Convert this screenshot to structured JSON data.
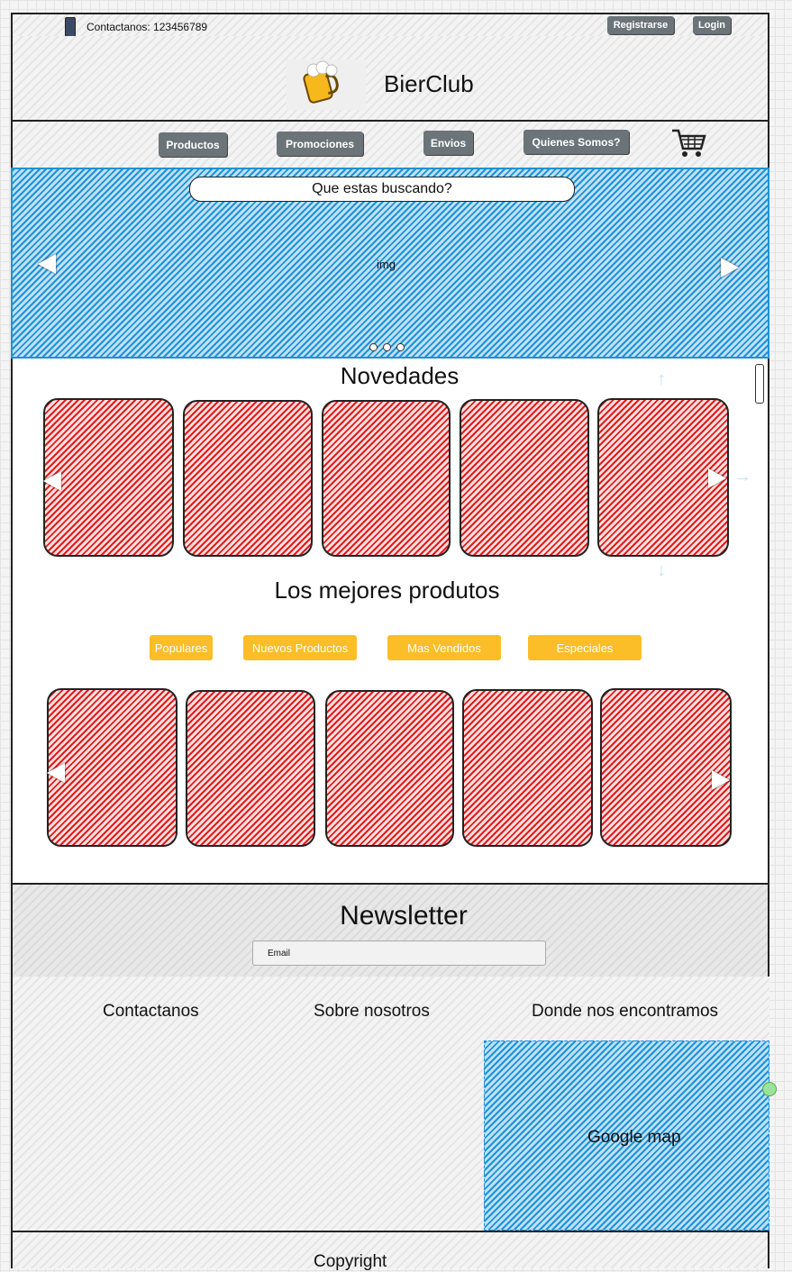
{
  "topbar": {
    "contact_text": "Contactanos: 123456789",
    "register_label": "Registrarse",
    "login_label": "Login"
  },
  "brand": {
    "name": "BierClub"
  },
  "nav": {
    "items": [
      "Productos",
      "Promociones",
      "Envios",
      "Quienes Somos?"
    ]
  },
  "hero": {
    "search_placeholder": "Que estas buscando?",
    "image_label": "img",
    "dots": 3
  },
  "novedades": {
    "title": "Novedades"
  },
  "best": {
    "title": "Los mejores produtos",
    "tabs": [
      "Populares",
      "Nuevos Productos",
      "Mas Vendidos",
      "Especiales"
    ]
  },
  "newsletter": {
    "title": "Newsletter",
    "email_placeholder": "Email"
  },
  "footer": {
    "col1": "Contactanos",
    "col2": "Sobre nosotros",
    "col3": "Donde nos encontramos",
    "map_label": "Google map",
    "copyright": "Copyright"
  },
  "colors": {
    "nav_button": "#6b7479",
    "tab_button": "#fbbd28",
    "hero_fill": "#1d93d6",
    "card_fill": "#e31b1b"
  }
}
